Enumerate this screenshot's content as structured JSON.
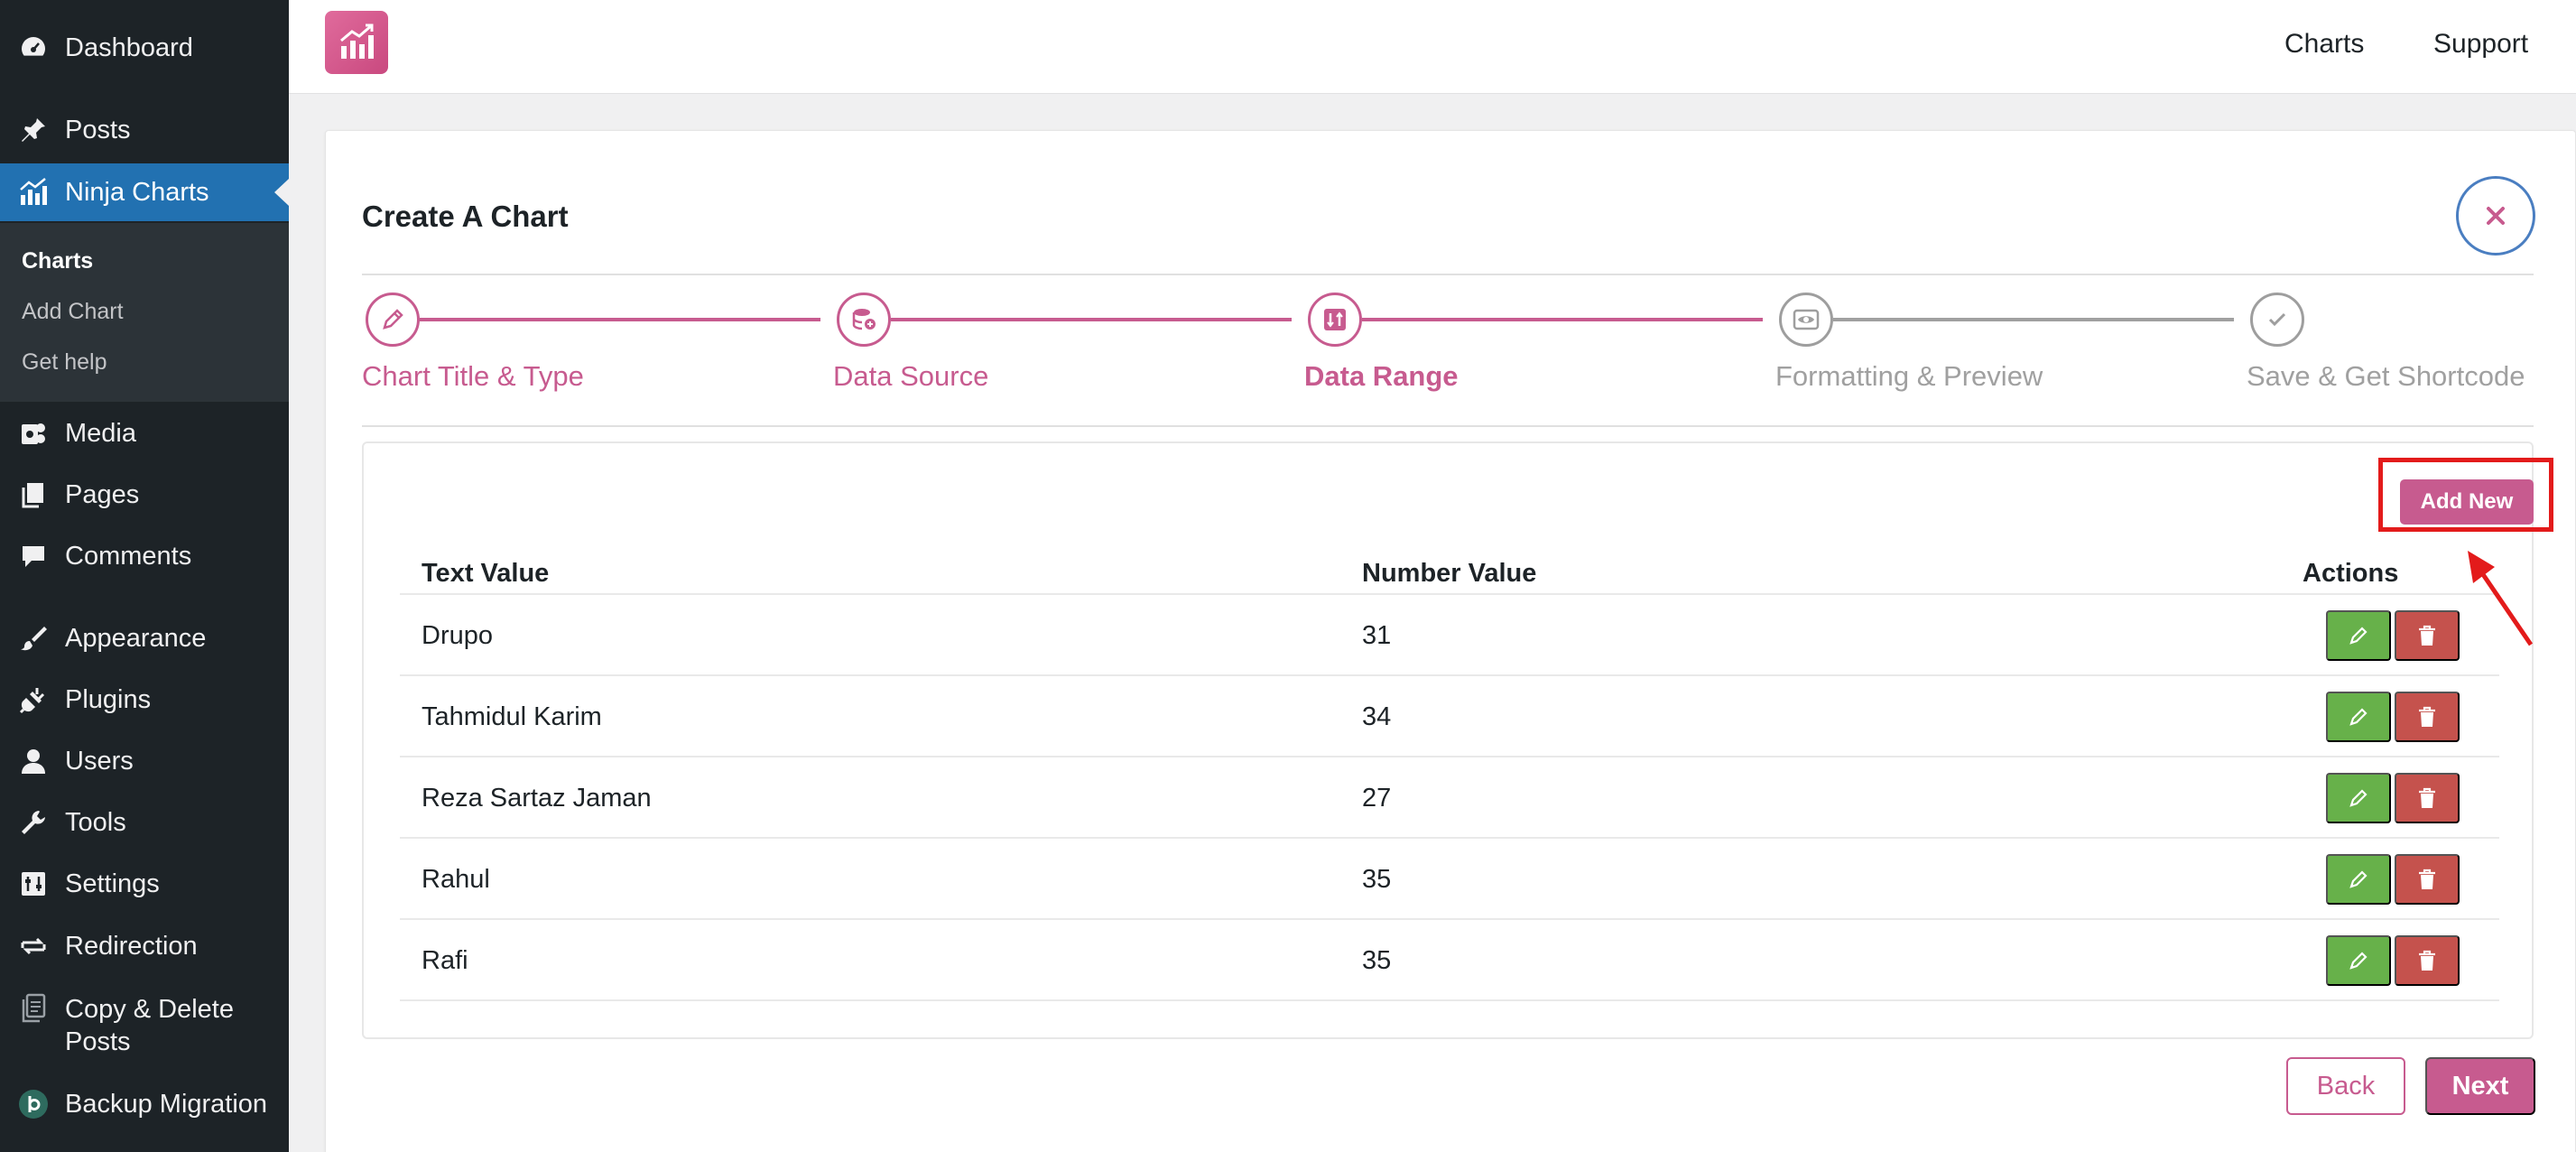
{
  "sidebar": {
    "items": [
      {
        "label": "Dashboard",
        "icon": "dashboard-icon"
      },
      {
        "label": "Posts",
        "icon": "pin-icon"
      },
      {
        "label": "Ninja Charts",
        "icon": "chart-icon"
      },
      {
        "label": "Media",
        "icon": "media-icon"
      },
      {
        "label": "Pages",
        "icon": "pages-icon"
      },
      {
        "label": "Comments",
        "icon": "comment-icon"
      },
      {
        "label": "Appearance",
        "icon": "brush-icon"
      },
      {
        "label": "Plugins",
        "icon": "plug-icon"
      },
      {
        "label": "Users",
        "icon": "user-icon"
      },
      {
        "label": "Tools",
        "icon": "wrench-icon"
      },
      {
        "label": "Settings",
        "icon": "sliders-icon"
      },
      {
        "label": "Redirection",
        "icon": "redirect-icon"
      },
      {
        "label": "Copy & Delete Posts",
        "icon": "copy-icon"
      },
      {
        "label": "Backup Migration",
        "icon": "backup-icon"
      }
    ],
    "submenu": [
      {
        "label": "Charts"
      },
      {
        "label": "Add Chart"
      },
      {
        "label": "Get help"
      }
    ]
  },
  "topbar": {
    "links": [
      "Charts",
      "Support"
    ]
  },
  "modal": {
    "title": "Create A Chart",
    "steps": [
      {
        "label": "Chart Title & Type",
        "state": "done"
      },
      {
        "label": "Data Source",
        "state": "done"
      },
      {
        "label": "Data Range",
        "state": "current"
      },
      {
        "label": "Formatting & Preview",
        "state": "todo"
      },
      {
        "label": "Save & Get Shortcode",
        "state": "todo"
      }
    ],
    "add_new_label": "Add New",
    "columns": [
      "Text Value",
      "Number Value",
      "Actions"
    ],
    "rows": [
      {
        "text": "Drupo",
        "number": "31"
      },
      {
        "text": "Tahmidul Karim",
        "number": "34"
      },
      {
        "text": "Reza Sartaz Jaman",
        "number": "27"
      },
      {
        "text": "Rahul",
        "number": "35"
      },
      {
        "text": "Rafi",
        "number": "35"
      }
    ],
    "back_label": "Back",
    "next_label": "Next"
  },
  "colors": {
    "accent": "#c75b8f",
    "sidebar_bg": "#1d2327",
    "sidebar_active": "#2271b1",
    "edit_green": "#67b14a",
    "delete_red": "#c5524d",
    "highlight_red": "#e31b1b"
  }
}
